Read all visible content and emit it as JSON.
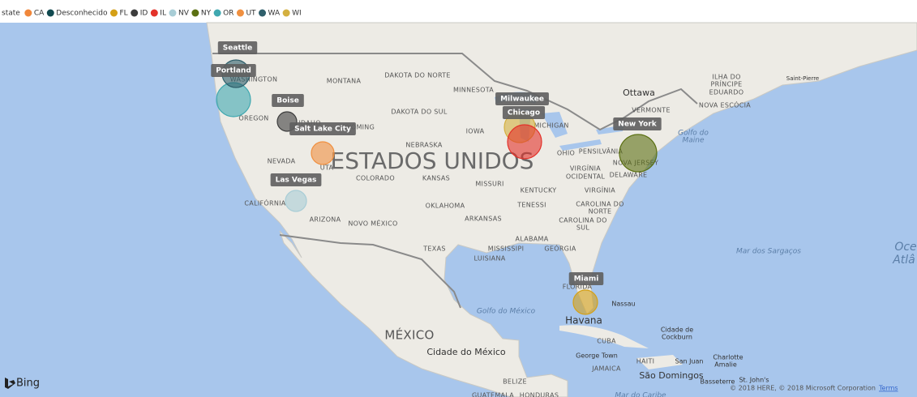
{
  "legend": {
    "title": "state",
    "items": [
      {
        "name": "CA",
        "color": "#F0873B"
      },
      {
        "name": "Desconhecido",
        "color": "#11494F"
      },
      {
        "name": "FL",
        "color": "#D4A017"
      },
      {
        "name": "ID",
        "color": "#3D3D3D"
      },
      {
        "name": "IL",
        "color": "#E3322A"
      },
      {
        "name": "NV",
        "color": "#A8CDD6"
      },
      {
        "name": "NY",
        "color": "#5B7012"
      },
      {
        "name": "OR",
        "color": "#40A8B0"
      },
      {
        "name": "UT",
        "color": "#F09040"
      },
      {
        "name": "WA",
        "color": "#2F5F6B"
      },
      {
        "name": "WI",
        "color": "#D4B040"
      }
    ]
  },
  "bubbles": [
    {
      "label": "Portland",
      "state": "OR"
    },
    {
      "label": "Seattle",
      "state": "WA"
    },
    {
      "label": "Boise",
      "state": "ID"
    },
    {
      "label": "Salt Lake City",
      "state": "UT"
    },
    {
      "label": "Las Vegas",
      "state": "NV"
    },
    {
      "label": "Milwaukee",
      "state": "WI"
    },
    {
      "label": "Chicago",
      "state": "IL"
    },
    {
      "label": "New York",
      "state": "NY"
    },
    {
      "label": "Miami",
      "state": "FL"
    }
  ],
  "map_labels": [
    "DAKOTA DO NORTE",
    "MONTANA",
    "WASHINGTON",
    "MINNESOTA",
    "Ottawa",
    "ILHA DO",
    "PRÍNCIPE",
    "EDUARDO",
    "Saint-Pierre",
    "DAKOTA DO SUL",
    "OREGON",
    "IDAHO",
    "WYOMING",
    "IOWA",
    "MICHIGAN",
    "VERMONTE",
    "NOVA ESCÓCIA",
    "Golfo do",
    "Maine",
    "NEBRASKA",
    "NEVADA",
    "UTA",
    "ESTADOS UNIDOS",
    "COLORADO",
    "KANSAS",
    "MISSURI",
    "OHIO",
    "PENSILVÂNIA",
    "VIRGÍNIA",
    "OCIDENTAL",
    "DELAWARE",
    "NOVA JERSEY",
    "KENTUCKY",
    "VIRGÍNIA",
    "CALIFÓRNIA",
    "OKLAHOMA",
    "TENESSI",
    "CAROLINA DO",
    "NORTE",
    "ARIZONA",
    "NOVO MÉXICO",
    "ARKANSAS",
    "CAROLINA DO",
    "SUL",
    "ALABAMA",
    "TEXAS",
    "MISSISSIPI",
    "GEÓRGIA",
    "LUISIANA",
    "Mar dos Sargaços",
    "Oce",
    "Atlâ",
    "FLÓRIDA",
    "Nassau",
    "Golfo do México",
    "Havana",
    "MÉXICO",
    "Cidade do México",
    "CUBA",
    "Cidade de",
    "Cockburn",
    "George Town",
    "HAITI",
    "San Juan",
    "Charlotte",
    "Amalie",
    "JAMAICA",
    "São Domingos",
    "Basseterre",
    "St. John's",
    "BELIZE",
    "GUATEMALA",
    "HONDURAS",
    "Mar do Caribe"
  ],
  "attribution": {
    "logo": "Bing",
    "copyright": "© 2018 HERE, © 2018 Microsoft Corporation",
    "terms": "Terms"
  }
}
